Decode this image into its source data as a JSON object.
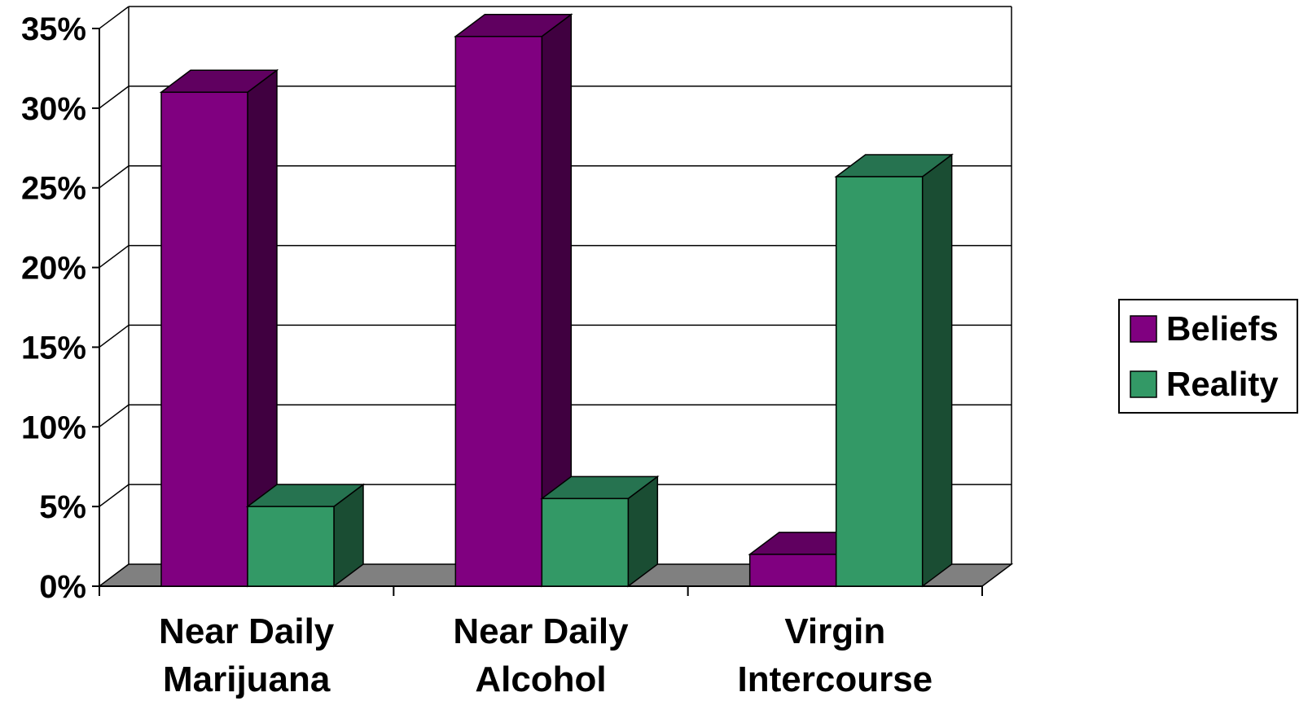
{
  "chart_data": {
    "type": "bar",
    "style": "3d-clustered-column",
    "title": "",
    "xlabel": "",
    "ylabel": "",
    "categories": [
      [
        "Near Daily",
        "Marijuana"
      ],
      [
        "Near Daily",
        "Alcohol"
      ],
      [
        "Virgin",
        "Intercourse"
      ]
    ],
    "series": [
      {
        "name": "Beliefs",
        "values": [
          31,
          34.5,
          2
        ],
        "color": "#800080",
        "side_color": "#400040",
        "top_color": "#600060"
      },
      {
        "name": "Reality",
        "values": [
          5,
          5.5,
          25.7
        ],
        "color": "#339966",
        "side_color": "#1a4d33",
        "top_color": "#267350"
      }
    ],
    "ylim": [
      0,
      35
    ],
    "yticks": [
      0,
      5,
      10,
      15,
      20,
      25,
      30,
      35
    ],
    "ytick_labels": [
      "0%",
      "5%",
      "10%",
      "15%",
      "20%",
      "25%",
      "30%",
      "35%"
    ],
    "grid": true,
    "legend_position": "right",
    "floor_color": "#808080"
  }
}
